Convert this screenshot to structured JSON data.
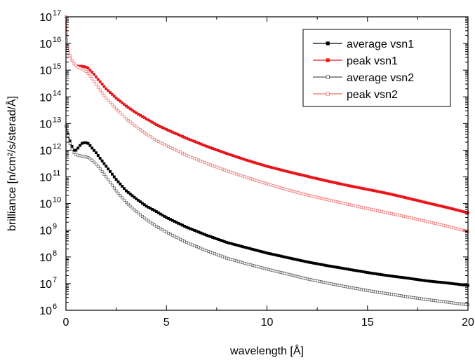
{
  "chart_data": {
    "type": "line",
    "title": "",
    "xlabel": "wavelength [Å]",
    "ylabel": "brilliance [n/cm²/s/sterad/Å]",
    "xlim": [
      0,
      20
    ],
    "ylim": [
      1000000,
      100000000000000000
    ],
    "yscale": "log",
    "grid": false,
    "legend_position": "top-right",
    "x_ticks": [
      {
        "value": 0,
        "label": "0"
      },
      {
        "value": 5,
        "label": "5"
      },
      {
        "value": 10,
        "label": "10"
      },
      {
        "value": 15,
        "label": "15"
      },
      {
        "value": 20,
        "label": "20"
      }
    ],
    "y_ticks": [
      {
        "value": 1000000,
        "base": "10",
        "exp": "6"
      },
      {
        "value": 10000000,
        "base": "10",
        "exp": "7"
      },
      {
        "value": 100000000,
        "base": "10",
        "exp": "8"
      },
      {
        "value": 1000000000,
        "base": "10",
        "exp": "9"
      },
      {
        "value": 10000000000,
        "base": "10",
        "exp": "10"
      },
      {
        "value": 100000000000,
        "base": "10",
        "exp": "11"
      },
      {
        "value": 1000000000000,
        "base": "10",
        "exp": "12"
      },
      {
        "value": 10000000000000,
        "base": "10",
        "exp": "13"
      },
      {
        "value": 100000000000000,
        "base": "10",
        "exp": "14"
      },
      {
        "value": 1000000000000000,
        "base": "10",
        "exp": "15"
      },
      {
        "value": 10000000000000000,
        "base": "10",
        "exp": "16"
      },
      {
        "value": 100000000000000000,
        "base": "10",
        "exp": "17"
      }
    ],
    "series": [
      {
        "name": "average vsn1",
        "color": "#000000",
        "marker": "filled-square",
        "x": [
          0.0,
          0.1,
          0.2,
          0.3,
          0.4,
          0.5,
          0.6,
          0.7,
          0.8,
          0.9,
          1.0,
          1.1,
          1.2,
          1.3,
          1.5,
          1.7,
          2.0,
          2.5,
          3.0,
          3.5,
          4.0,
          4.5,
          5.0,
          6.0,
          7.0,
          8.0,
          9.0,
          10.0,
          11.0,
          12.0,
          13.0,
          14.0,
          15.0,
          16.0,
          17.0,
          18.0,
          19.0,
          20.0
        ],
        "y": [
          8000000000000.0,
          4000000000000.0,
          2200000000000.0,
          1400000000000.0,
          1000000000000.0,
          1000000000000.0,
          1200000000000.0,
          1500000000000.0,
          1800000000000.0,
          1900000000000.0,
          1900000000000.0,
          1800000000000.0,
          1500000000000.0,
          1200000000000.0,
          800000000000.0,
          500000000000.0,
          250000000000.0,
          80000000000.0,
          30000000000.0,
          15000000000.0,
          8000000000.0,
          5000000000.0,
          3000000000.0,
          1300000000.0,
          650000000.0,
          350000000.0,
          220000000.0,
          140000000.0,
          95000000.0,
          65000000.0,
          47000000.0,
          35000000.0,
          26000000.0,
          20000000.0,
          16000000.0,
          12500000.0,
          10500000.0,
          8500000.0
        ]
      },
      {
        "name": "peak vsn1",
        "color": "#e8151b",
        "marker": "filled-square",
        "x": [
          0.0,
          0.05,
          0.1,
          0.15,
          0.2,
          0.3,
          0.4,
          0.5,
          0.6,
          0.7,
          0.8,
          0.9,
          1.0,
          1.1,
          1.2,
          1.4,
          1.6,
          1.8,
          2.0,
          2.5,
          3.0,
          3.5,
          4.0,
          4.5,
          5.0,
          6.0,
          7.0,
          8.0,
          9.0,
          10.0,
          11.0,
          12.0,
          13.0,
          14.0,
          15.0,
          16.0,
          17.0,
          18.0,
          19.0,
          20.0
        ],
        "y": [
          1e+17,
          2e+16,
          8000000000000000.0,
          5000000000000000.0,
          3500000000000000.0,
          2300000000000000.0,
          1800000000000000.0,
          1500000000000000.0,
          1400000000000000.0,
          1400000000000000.0,
          1400000000000000.0,
          1350000000000000.0,
          1300000000000000.0,
          1200000000000000.0,
          1000000000000000.0,
          700000000000000.0,
          450000000000000.0,
          300000000000000.0,
          200000000000000.0,
          90000000000000.0,
          45000000000000.0,
          25000000000000.0,
          15000000000000.0,
          9000000000000.0,
          6000000000000.0,
          2800000000000.0,
          1400000000000.0,
          750000000000.0,
          420000000000.0,
          250000000000.0,
          160000000000.0,
          105000000000.0,
          70000000000.0,
          48000000000.0,
          34000000000.0,
          24000000000.0,
          16000000000.0,
          10500000000.0,
          7000000000.0,
          4500000000.0
        ]
      },
      {
        "name": "average vsn2",
        "color": "#555555",
        "marker": "open-square",
        "x": [
          0.0,
          0.1,
          0.2,
          0.3,
          0.4,
          0.5,
          0.6,
          0.7,
          0.8,
          0.9,
          1.0,
          1.1,
          1.2,
          1.3,
          1.5,
          1.7,
          2.0,
          2.5,
          3.0,
          3.5,
          4.0,
          4.5,
          5.0,
          6.0,
          7.0,
          8.0,
          9.0,
          10.0,
          11.0,
          12.0,
          13.0,
          14.0,
          15.0,
          16.0,
          17.0,
          18.0,
          19.0,
          20.0
        ],
        "y": [
          8000000000000.0,
          3500000000000.0,
          1800000000000.0,
          1100000000000.0,
          800000000000.0,
          700000000000.0,
          650000000000.0,
          620000000000.0,
          600000000000.0,
          580000000000.0,
          560000000000.0,
          530000000000.0,
          480000000000.0,
          420000000000.0,
          300000000000.0,
          200000000000.0,
          100000000000.0,
          30000000000.0,
          11000000000.0,
          5000000000.0,
          2500000000.0,
          1400000000.0,
          850000000.0,
          350000000.0,
          170000000.0,
          90000000.0,
          55000000.0,
          35000000.0,
          23000000.0,
          15000000.0,
          10500000.0,
          7500000.0,
          5500000.0,
          4200000.0,
          3200000.0,
          2500000.0,
          2000000.0,
          1600000.0
        ]
      },
      {
        "name": "peak vsn2",
        "color": "#f07070",
        "marker": "open-square",
        "x": [
          0.0,
          0.05,
          0.1,
          0.15,
          0.2,
          0.3,
          0.4,
          0.5,
          0.6,
          0.7,
          0.8,
          0.9,
          1.0,
          1.1,
          1.2,
          1.4,
          1.6,
          1.8,
          2.0,
          2.5,
          3.0,
          3.5,
          4.0,
          4.5,
          5.0,
          6.0,
          7.0,
          8.0,
          9.0,
          10.0,
          11.0,
          12.0,
          13.0,
          14.0,
          15.0,
          16.0,
          17.0,
          18.0,
          19.0,
          20.0
        ],
        "y": [
          1e+17,
          2e+16,
          8000000000000000.0,
          5000000000000000.0,
          3500000000000000.0,
          2300000000000000.0,
          1800000000000000.0,
          1500000000000000.0,
          1300000000000000.0,
          1200000000000000.0,
          1100000000000000.0,
          1000000000000000.0,
          900000000000000.0,
          750000000000000.0,
          600000000000000.0,
          380000000000000.0,
          230000000000000.0,
          140000000000000.0,
          90000000000000.0,
          35000000000000.0,
          15000000000000.0,
          7500000000000.0,
          4000000000000.0,
          2300000000000.0,
          1500000000000.0,
          650000000000.0,
          320000000000.0,
          170000000000.0,
          95000000000.0,
          55000000000.0,
          33000000000.0,
          21000000000.0,
          14000000000.0,
          9500000000.0,
          6500000000.0,
          4500000000.0,
          3100000000.0,
          2100000000.0,
          1400000000.0,
          900000000.0
        ]
      }
    ]
  }
}
